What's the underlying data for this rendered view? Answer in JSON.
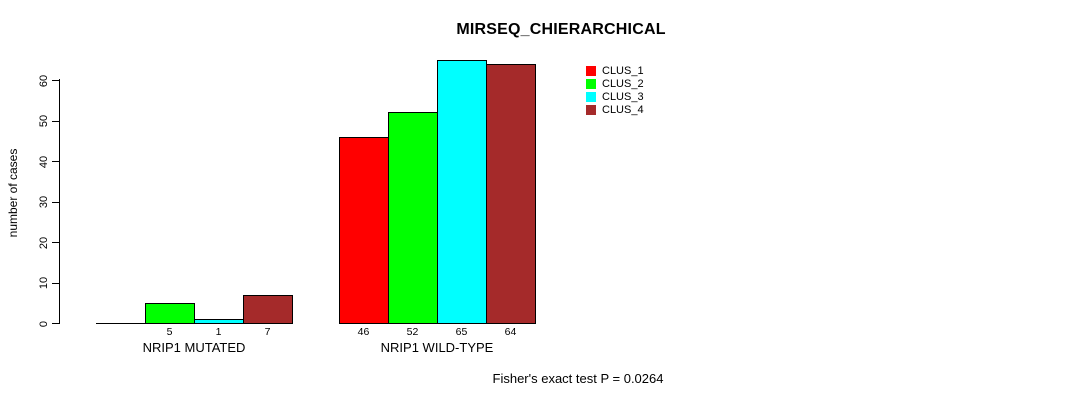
{
  "page": {
    "background": "#FFFFFF"
  },
  "chart_data": {
    "type": "bar",
    "title": "MIRSEQ_CHIERARCHICAL",
    "ylabel": "number of cases",
    "xlabel": "",
    "ylim": [
      0,
      60
    ],
    "yticks": [
      0,
      10,
      20,
      30,
      40,
      50,
      60
    ],
    "grid": false,
    "legend_position": "topright",
    "categories": [
      "NRIP1 MUTATED",
      "NRIP1 WILD-TYPE"
    ],
    "series": [
      {
        "name": "CLUS_1",
        "color": "#FF0000",
        "values": [
          0,
          46
        ]
      },
      {
        "name": "CLUS_2",
        "color": "#00FF00",
        "values": [
          5,
          52
        ]
      },
      {
        "name": "CLUS_3",
        "color": "#00FFFF",
        "values": [
          1,
          65
        ]
      },
      {
        "name": "CLUS_4",
        "color": "#A52A2A",
        "values": [
          7,
          64
        ]
      }
    ],
    "bar_value_labels": [
      [
        "",
        "5",
        "1",
        "7"
      ],
      [
        "46",
        "52",
        "65",
        "64"
      ]
    ],
    "footnote": "Fisher's exact test P = 0.0264",
    "axis_color": "#000000",
    "bar_border_color": "#000000"
  }
}
